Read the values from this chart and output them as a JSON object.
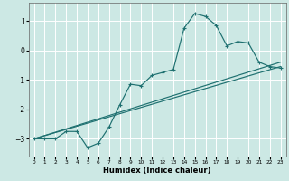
{
  "xlabel": "Humidex (Indice chaleur)",
  "bg_color": "#cce8e4",
  "grid_color": "#ffffff",
  "line_color": "#1e7070",
  "xlim": [
    -0.5,
    23.5
  ],
  "ylim": [
    -3.6,
    1.6
  ],
  "xticks": [
    0,
    1,
    2,
    3,
    4,
    5,
    6,
    7,
    8,
    9,
    10,
    11,
    12,
    13,
    14,
    15,
    16,
    17,
    18,
    19,
    20,
    21,
    22,
    23
  ],
  "yticks": [
    -3,
    -2,
    -1,
    0,
    1
  ],
  "line1_x": [
    0,
    1,
    2,
    3,
    4,
    5,
    6,
    7,
    8,
    9,
    10,
    11,
    12,
    13,
    14,
    15,
    16,
    17,
    18,
    19,
    20,
    21,
    22,
    23
  ],
  "line1_y": [
    -3.0,
    -3.0,
    -3.0,
    -2.75,
    -2.75,
    -3.3,
    -3.15,
    -2.6,
    -1.85,
    -1.15,
    -1.2,
    -0.85,
    -0.75,
    -0.65,
    0.75,
    1.25,
    1.15,
    0.85,
    0.15,
    0.3,
    0.25,
    -0.4,
    -0.55,
    -0.6
  ],
  "line2_x": [
    0,
    23
  ],
  "line2_y": [
    -3.0,
    -0.4
  ],
  "line3_x": [
    0,
    23
  ],
  "line3_y": [
    -3.0,
    -0.55
  ]
}
